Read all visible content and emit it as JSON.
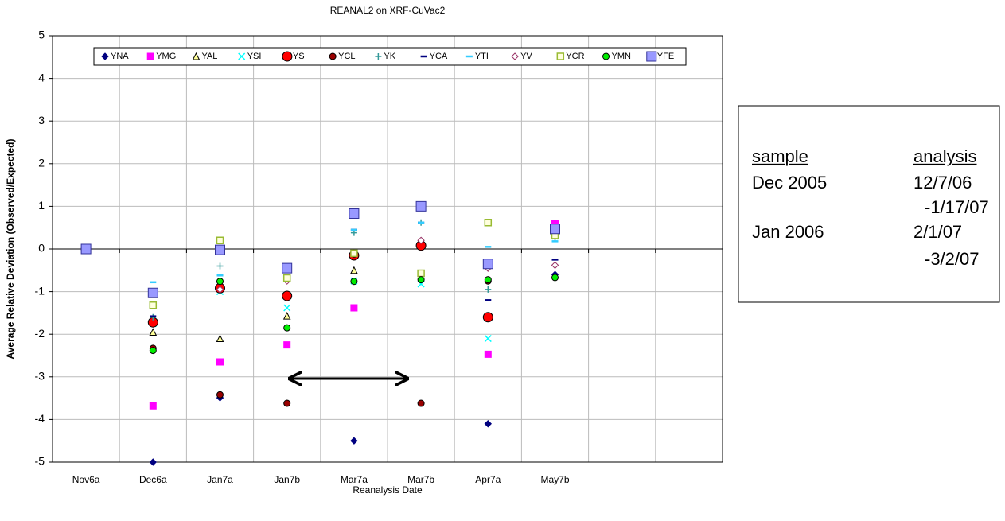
{
  "chart_data": {
    "type": "scatter",
    "title": "REANAL2 on XRF-CuVac2",
    "x_label": "Reanalysis Date",
    "y_label": "Average Relative Deviation (Observed/Expected)",
    "categories": [
      "Nov6a",
      "Dec6a",
      "Jan7a",
      "Jan7b",
      "Mar7a",
      "Mar7b",
      "Apr7a",
      "May7b",
      null,
      null
    ],
    "ylim": [
      -5,
      5
    ],
    "yticks": [
      -5,
      -4,
      -3,
      -2,
      -1,
      0,
      1,
      2,
      3,
      4,
      5
    ],
    "grid": true,
    "legend": "top",
    "series": [
      {
        "name": "YNA",
        "color": "#000080",
        "marker": "diamond",
        "values": [
          0,
          -5,
          -3.49,
          null,
          -4.5,
          null,
          -4.1,
          -0.6,
          null,
          null
        ]
      },
      {
        "name": "YMG",
        "color": "#ff00ff",
        "marker": "square",
        "values": [
          0,
          -3.68,
          -2.65,
          -2.25,
          -1.38,
          null,
          -2.47,
          0.6,
          null,
          null
        ]
      },
      {
        "name": "YAL",
        "color": "#ffff99",
        "marker": "triangle",
        "values": [
          0,
          -1.95,
          -2.1,
          -1.57,
          -0.5,
          null,
          null,
          null,
          null,
          null
        ]
      },
      {
        "name": "YSI",
        "color": "#00ffff",
        "marker": "x",
        "values": [
          0,
          -1.75,
          -1.0,
          -1.38,
          -0.75,
          -0.82,
          -2.1,
          0.3,
          null,
          null
        ]
      },
      {
        "name": "YS",
        "color": "#ff0000",
        "marker": "bigcircle",
        "values": [
          0,
          -1.72,
          -0.92,
          -1.1,
          -0.15,
          0.08,
          -1.6,
          0.4,
          null,
          null
        ]
      },
      {
        "name": "YCL",
        "color": "#990000",
        "marker": "circle",
        "values": [
          0,
          -2.33,
          -3.42,
          -3.62,
          -0.12,
          -3.62,
          -0.75,
          0.45,
          null,
          null
        ]
      },
      {
        "name": "YK",
        "color": "#339999",
        "marker": "plus",
        "values": [
          0,
          -1.6,
          -0.4,
          -0.7,
          0.38,
          0.62,
          -0.95,
          0.25,
          null,
          null
        ]
      },
      {
        "name": "YCA",
        "color": "#000080",
        "marker": "dash",
        "values": [
          0,
          -1.58,
          -0.62,
          -0.7,
          0.45,
          0.62,
          -1.2,
          -0.25,
          null,
          null
        ]
      },
      {
        "name": "YTI",
        "color": "#33ccff",
        "marker": "dash",
        "values": [
          0,
          -0.78,
          -0.62,
          -0.65,
          0.45,
          0.62,
          0.05,
          0.18,
          null,
          null
        ]
      },
      {
        "name": "YV",
        "color": "#993366",
        "marker": "opendiamond",
        "values": [
          0,
          -1.05,
          -0.95,
          -0.75,
          -0.1,
          0.2,
          -0.45,
          -0.38,
          null,
          null
        ]
      },
      {
        "name": "YCR",
        "color": "#99bb33",
        "marker": "opensquare",
        "values": [
          0,
          -1.32,
          0.2,
          -0.68,
          -0.1,
          -0.57,
          0.62,
          0.32,
          null,
          null
        ]
      },
      {
        "name": "YMN",
        "color": "#00ee00",
        "marker": "circle",
        "values": [
          0,
          -2.38,
          -0.76,
          -1.85,
          -0.76,
          -0.72,
          -0.72,
          -0.67,
          null,
          null
        ]
      },
      {
        "name": "YFE",
        "color": "#9999ff",
        "marker": "bigsquare",
        "values": [
          0,
          -1.03,
          -0.02,
          -0.45,
          0.83,
          1.0,
          -0.35,
          0.47,
          null,
          null
        ]
      }
    ],
    "note_box": {
      "header": [
        "sample",
        "analysis"
      ],
      "rows": [
        {
          "sample": "Dec 2005",
          "analysis": [
            "12/7/06",
            "-1/17/07"
          ]
        },
        {
          "sample": "Jan 2006",
          "analysis": [
            "2/1/07",
            "-3/2/07"
          ]
        }
      ]
    }
  }
}
